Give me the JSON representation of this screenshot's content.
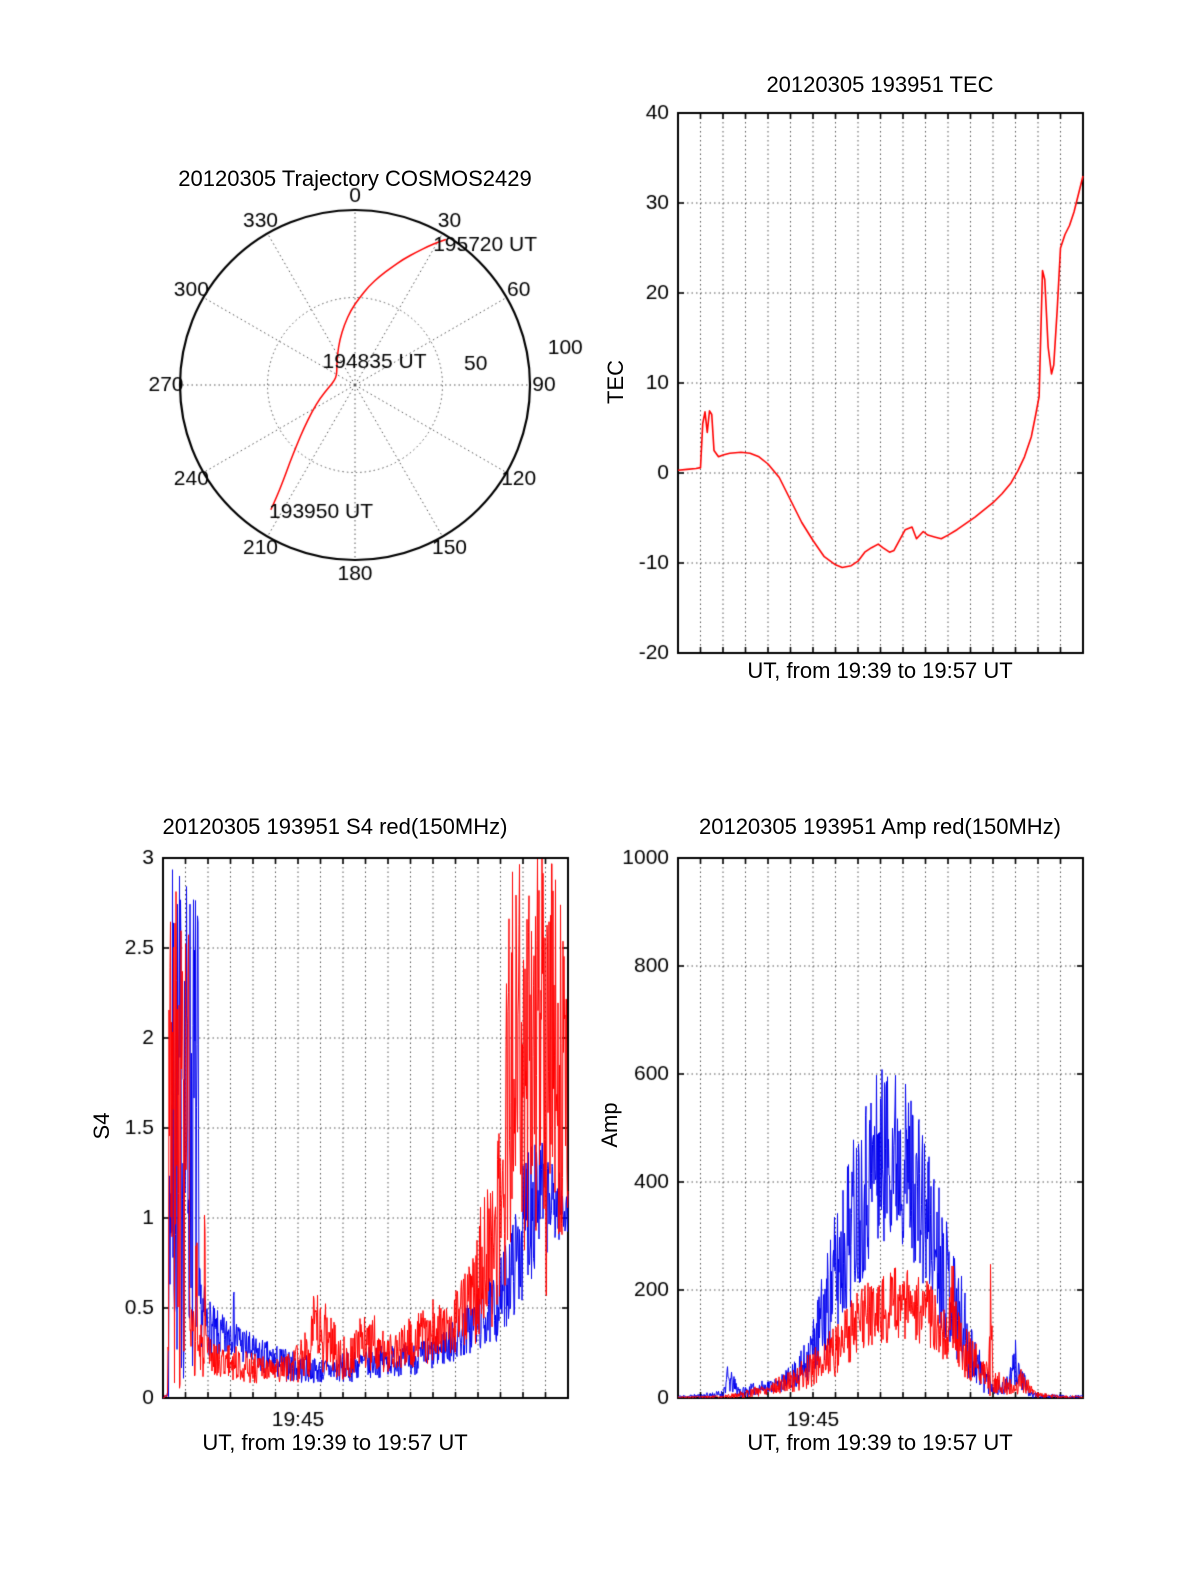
{
  "colors": {
    "red": "#ff0000",
    "blue": "#0000ee",
    "grid": "#555555",
    "axis": "#000000"
  },
  "chart_data": [
    {
      "type": "polar-trajectory",
      "title": "20120305 Trajectory COSMOS2429",
      "azimuth_ticks_deg": [
        0,
        30,
        60,
        90,
        120,
        150,
        180,
        210,
        240,
        270,
        300,
        330
      ],
      "azimuth_label_r": 108,
      "r_max": 100,
      "r_dotted_ring": 50,
      "radial_tick_labels": [
        {
          "label": "50",
          "az_deg": 80,
          "r": 70
        },
        {
          "label": "100",
          "az_deg": 80,
          "r": 122
        }
      ],
      "annotations": [
        {
          "label": "195720 UT",
          "az_deg": 43,
          "r": 109
        },
        {
          "label": "194835 UT",
          "az_deg": 41,
          "r": 17
        },
        {
          "label": "193950 UT",
          "az_deg": 195,
          "r": 75
        }
      ],
      "line_color": "#ff0000",
      "trajectory_points": {
        "az_deg": [
          214,
          215,
          217,
          220,
          224,
          230,
          238,
          250,
          265,
          282,
          300,
          316,
          330,
          341,
          350,
          357,
          3,
          8,
          13,
          17,
          21,
          25,
          28,
          30,
          32
        ],
        "r": [
          86,
          78,
          68,
          58,
          48,
          38,
          29,
          21,
          15,
          12,
          12,
          15,
          20,
          27,
          35,
          43,
          50,
          57,
          64,
          70,
          77,
          84,
          90,
          94,
          98
        ]
      }
    },
    {
      "type": "line",
      "title": "20120305 193951 TEC",
      "ylabel": "TEC",
      "xlabel": "UT, from 19:39 to 19:57 UT",
      "x_start": "19:39",
      "x_end": "19:57",
      "xlim_minutes": [
        0,
        18
      ],
      "ylim": [
        -20,
        40
      ],
      "yticks": [
        -20,
        -10,
        0,
        10,
        20,
        30,
        40
      ],
      "xtick_labels": [],
      "series": [
        {
          "name": "TEC",
          "color": "#ff0000",
          "t": [
            0,
            0.4,
            0.8,
            1.0,
            1.1,
            1.2,
            1.3,
            1.4,
            1.5,
            1.6,
            1.8,
            2.0,
            2.3,
            2.8,
            3.2,
            3.6,
            4.0,
            4.5,
            5.0,
            5.5,
            6.0,
            6.5,
            7.0,
            7.3,
            7.7,
            8.0,
            8.3,
            8.6,
            8.9,
            9.1,
            9.4,
            9.6,
            9.9,
            10.1,
            10.4,
            10.6,
            10.9,
            11.1,
            11.4,
            11.7,
            12.0,
            12.4,
            12.8,
            13.2,
            13.6,
            14.0,
            14.4,
            14.8,
            15.1,
            15.4,
            15.7,
            15.9,
            16.05,
            16.2,
            16.3,
            16.45,
            16.6,
            16.7,
            16.85,
            17.0,
            17.2,
            17.4,
            17.6,
            17.8,
            17.9,
            18.0
          ],
          "v": [
            0.3,
            0.4,
            0.5,
            0.6,
            5.5,
            6.8,
            4.5,
            6.9,
            6.5,
            2.5,
            1.8,
            2.0,
            2.2,
            2.3,
            2.2,
            1.8,
            1.0,
            -0.5,
            -3.0,
            -5.5,
            -7.5,
            -9.3,
            -10.2,
            -10.5,
            -10.3,
            -9.8,
            -8.8,
            -8.3,
            -7.9,
            -8.3,
            -8.8,
            -8.6,
            -7.2,
            -6.3,
            -6.0,
            -7.3,
            -6.5,
            -6.9,
            -7.1,
            -7.3,
            -6.9,
            -6.3,
            -5.6,
            -4.9,
            -4.1,
            -3.3,
            -2.3,
            -1.1,
            0.2,
            1.8,
            4.0,
            6.5,
            8.5,
            22.5,
            21.5,
            14.0,
            11.0,
            12.0,
            18.0,
            25.0,
            26.5,
            27.5,
            29.0,
            31.0,
            32.0,
            33.0
          ]
        }
      ]
    },
    {
      "type": "noisy-line",
      "title": "20120305 193951 S4 red(150MHz)",
      "ylabel": "S4",
      "xlabel": "UT, from 19:39 to 19:57 UT",
      "x_start": "19:39",
      "x_end": "19:57",
      "xlim_minutes": [
        0,
        18
      ],
      "ylim": [
        0,
        3
      ],
      "yticks": [
        0,
        0.5,
        1,
        1.5,
        2,
        2.5,
        3
      ],
      "xtick_labels": [
        {
          "minute": 6,
          "label": "19:45"
        }
      ],
      "series": [
        {
          "name": "S4 150MHz blue",
          "color": "#0000ee",
          "seed": 7,
          "envelope": {
            "t": [
              0.0,
              0.25,
              0.3,
              1.55,
              1.6,
              1.9,
              2.3,
              2.8,
              3.1,
              3.3,
              4.0,
              5.0,
              6.0,
              7.0,
              8.0,
              9.0,
              10.0,
              11.0,
              12.0,
              13.0,
              14.0,
              14.8,
              15.3,
              15.8,
              16.2,
              16.6,
              17.0,
              17.4,
              18.0
            ],
            "lo": [
              0.0,
              0.0,
              0.05,
              0.05,
              0.3,
              0.25,
              0.2,
              0.2,
              0.25,
              0.2,
              0.15,
              0.1,
              0.08,
              0.08,
              0.08,
              0.1,
              0.12,
              0.12,
              0.15,
              0.2,
              0.25,
              0.3,
              0.4,
              0.5,
              0.6,
              0.7,
              0.8,
              0.85,
              0.9
            ],
            "hi": [
              0.0,
              0.05,
              3.0,
              3.0,
              0.75,
              0.6,
              0.5,
              0.45,
              0.65,
              0.45,
              0.35,
              0.3,
              0.25,
              0.22,
              0.25,
              0.28,
              0.3,
              0.3,
              0.35,
              0.45,
              0.6,
              0.7,
              0.9,
              1.1,
              1.5,
              1.7,
              1.4,
              1.3,
              1.2
            ]
          }
        },
        {
          "name": "S4 150MHz red",
          "color": "#ff0000",
          "seed": 3,
          "envelope": {
            "t": [
              0.0,
              0.2,
              0.25,
              1.15,
              1.2,
              1.45,
              1.5,
              1.55,
              1.8,
              1.85,
              1.9,
              2.0,
              2.5,
              3.0,
              4.0,
              5.0,
              6.0,
              6.5,
              7.0,
              7.5,
              8.0,
              8.5,
              9.0,
              9.5,
              10.0,
              10.5,
              11.0,
              11.5,
              12.0,
              12.5,
              13.0,
              13.5,
              14.0,
              14.5,
              15.0,
              15.2,
              15.4,
              16.25,
              16.3,
              16.35,
              17.0,
              17.05,
              17.1,
              18.0
            ],
            "lo": [
              0.0,
              0.0,
              0.05,
              0.05,
              0.1,
              0.1,
              0.0,
              0.1,
              0.1,
              0.0,
              0.1,
              0.12,
              0.12,
              0.1,
              0.08,
              0.08,
              0.08,
              0.1,
              0.12,
              0.12,
              0.1,
              0.12,
              0.15,
              0.15,
              0.12,
              0.15,
              0.15,
              0.18,
              0.2,
              0.2,
              0.25,
              0.3,
              0.3,
              0.35,
              0.5,
              0.6,
              0.8,
              0.8,
              0.0,
              0.8,
              0.8,
              0.0,
              0.8,
              0.8
            ],
            "hi": [
              0.0,
              0.05,
              3.0,
              3.0,
              0.5,
              0.5,
              1.9,
              0.45,
              0.4,
              1.6,
              0.35,
              0.35,
              0.3,
              0.3,
              0.25,
              0.22,
              0.3,
              0.55,
              0.6,
              0.5,
              0.35,
              0.4,
              0.5,
              0.45,
              0.35,
              0.4,
              0.45,
              0.5,
              0.55,
              0.5,
              0.6,
              0.8,
              1.0,
              1.3,
              1.5,
              2.0,
              3.0,
              3.0,
              3.0,
              3.0,
              3.0,
              3.0,
              3.0,
              3.0
            ]
          }
        }
      ]
    },
    {
      "type": "noisy-line",
      "title": "20120305 193951 Amp red(150MHz)",
      "ylabel": "Amp",
      "xlabel": "UT, from 19:39 to 19:57 UT",
      "x_start": "19:39",
      "x_end": "19:57",
      "xlim_minutes": [
        0,
        18
      ],
      "ylim": [
        0,
        1000
      ],
      "yticks": [
        0,
        200,
        400,
        600,
        800,
        1000
      ],
      "xtick_labels": [
        {
          "minute": 6,
          "label": "19:45"
        }
      ],
      "series": [
        {
          "name": "Amp 150MHz blue",
          "color": "#0000ee",
          "seed": 11,
          "envelope": {
            "t": [
              0.0,
              1.0,
              2.0,
              2.2,
              2.5,
              2.8,
              3.5,
              4.5,
              5.0,
              5.5,
              6.0,
              6.5,
              7.0,
              7.5,
              8.0,
              8.5,
              9.0,
              9.5,
              10.0,
              10.5,
              11.0,
              11.5,
              12.0,
              12.5,
              13.0,
              13.5,
              14.0,
              14.5,
              14.8,
              15.0,
              15.3,
              15.6,
              16.0,
              18.0
            ],
            "lo": [
              0,
              0,
              0,
              10,
              5,
              0,
              5,
              10,
              15,
              20,
              40,
              60,
              100,
              150,
              200,
              250,
              280,
              300,
              280,
              250,
              180,
              150,
              100,
              60,
              30,
              10,
              5,
              5,
              10,
              20,
              10,
              0,
              0,
              0
            ],
            "hi": [
              5,
              8,
              15,
              60,
              40,
              20,
              30,
              40,
              60,
              90,
              150,
              250,
              350,
              450,
              520,
              590,
              620,
              630,
              600,
              560,
              480,
              420,
              330,
              250,
              150,
              80,
              40,
              30,
              60,
              110,
              60,
              15,
              8,
              5
            ]
          }
        },
        {
          "name": "Amp 150MHz red",
          "color": "#ff0000",
          "seed": 5,
          "envelope": {
            "t": [
              0.0,
              2.0,
              3.0,
              4.0,
              5.0,
              5.5,
              6.0,
              6.5,
              7.0,
              7.5,
              8.0,
              8.5,
              9.0,
              9.5,
              10.0,
              10.5,
              11.0,
              11.5,
              12.0,
              12.2,
              12.4,
              12.6,
              13.0,
              13.5,
              13.8,
              13.9,
              14.0,
              14.5,
              15.0,
              15.3,
              15.6,
              16.0,
              18.0
            ],
            "lo": [
              0,
              0,
              0,
              5,
              10,
              15,
              20,
              30,
              40,
              60,
              80,
              90,
              100,
              100,
              110,
              100,
              90,
              80,
              60,
              80,
              60,
              40,
              30,
              20,
              10,
              0,
              10,
              5,
              5,
              10,
              5,
              0,
              0
            ],
            "hi": [
              3,
              5,
              15,
              30,
              50,
              70,
              90,
              120,
              150,
              180,
              200,
              220,
              230,
              240,
              250,
              230,
              220,
              200,
              180,
              300,
              180,
              140,
              120,
              90,
              60,
              300,
              60,
              40,
              30,
              60,
              30,
              10,
              3
            ]
          }
        }
      ]
    }
  ]
}
